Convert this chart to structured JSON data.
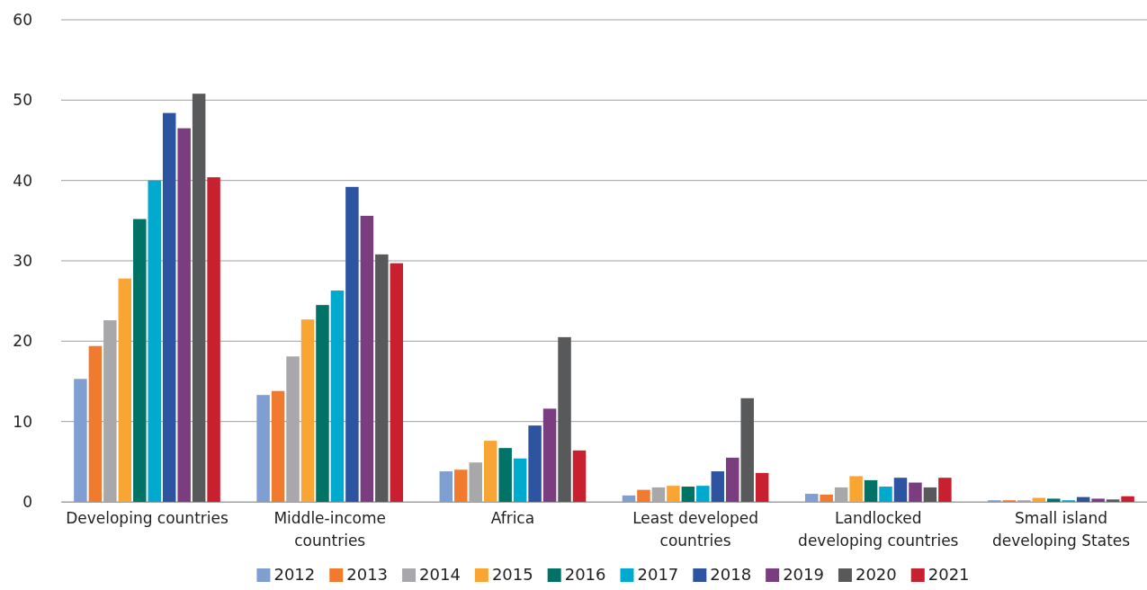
{
  "chart_data": {
    "type": "bar",
    "categories": [
      "Developing countries",
      "Middle-income countries",
      "Africa",
      "Least developed countries",
      "Landlocked developing countries",
      "Small island developing States"
    ],
    "series": [
      {
        "name": "2012",
        "color": "#7f9fd3",
        "values": [
          15.3,
          13.3,
          3.8,
          0.8,
          1.0,
          0.2
        ]
      },
      {
        "name": "2013",
        "color": "#f07a2e",
        "values": [
          19.4,
          13.8,
          4.0,
          1.5,
          0.9,
          0.2
        ]
      },
      {
        "name": "2014",
        "color": "#a8a8ab",
        "values": [
          22.6,
          18.1,
          4.9,
          1.8,
          1.8,
          0.2
        ]
      },
      {
        "name": "2015",
        "color": "#f9a533",
        "values": [
          27.8,
          22.7,
          7.6,
          2.0,
          3.2,
          0.5
        ]
      },
      {
        "name": "2016",
        "color": "#007366",
        "values": [
          35.2,
          24.5,
          6.7,
          1.9,
          2.7,
          0.4
        ]
      },
      {
        "name": "2017",
        "color": "#00a9ce",
        "values": [
          40.0,
          26.3,
          5.4,
          2.0,
          1.9,
          0.2
        ]
      },
      {
        "name": "2018",
        "color": "#2c54a0",
        "values": [
          48.4,
          39.2,
          9.5,
          3.8,
          3.0,
          0.6
        ]
      },
      {
        "name": "2019",
        "color": "#7b3c80",
        "values": [
          46.5,
          35.6,
          11.6,
          5.5,
          2.4,
          0.4
        ]
      },
      {
        "name": "2020",
        "color": "#58595b",
        "values": [
          50.8,
          30.8,
          20.5,
          12.9,
          1.8,
          0.3
        ]
      },
      {
        "name": "2021",
        "color": "#c8202f",
        "values": [
          40.4,
          29.7,
          6.4,
          3.6,
          3.0,
          0.7
        ]
      }
    ],
    "ylim": [
      0,
      60
    ],
    "yticks": [
      0,
      10,
      20,
      30,
      40,
      50,
      60
    ],
    "grid": "y",
    "legend": "bottom"
  }
}
